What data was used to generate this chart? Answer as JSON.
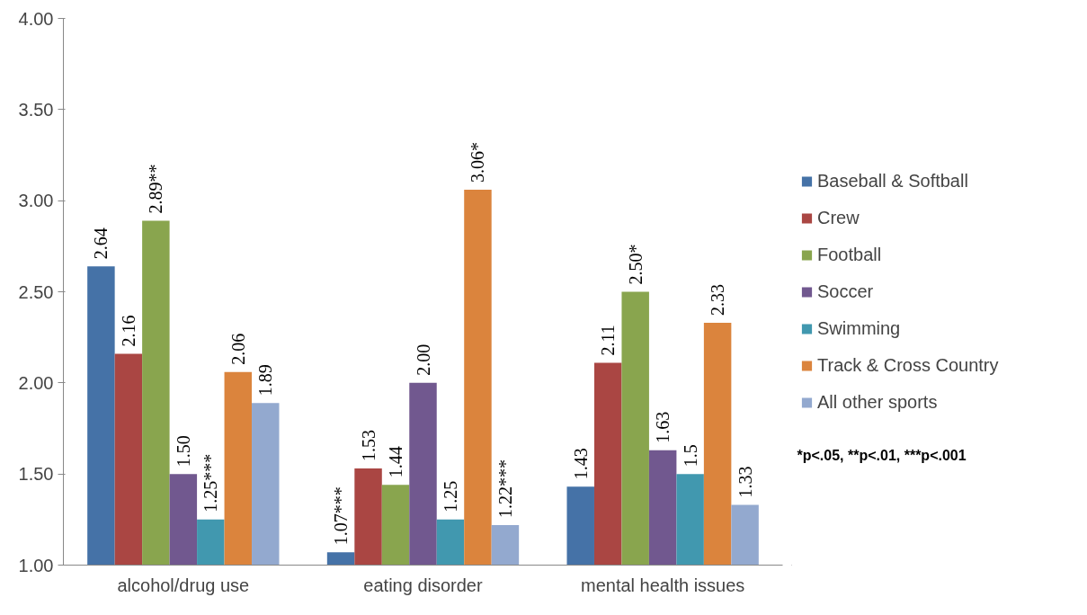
{
  "chart_data": {
    "type": "bar",
    "categories": [
      "alcohol/drug use",
      "eating disorder",
      "mental health issues"
    ],
    "series": [
      {
        "name": "Baseball & Softball",
        "color": "#4572a7",
        "values": [
          2.64,
          1.07,
          1.43
        ],
        "value_labels": [
          "2.64",
          "1.07***",
          "1.43"
        ]
      },
      {
        "name": "Crew",
        "color": "#aa4643",
        "values": [
          2.16,
          1.53,
          2.11
        ],
        "value_labels": [
          "2.16",
          "1.53",
          "2.11"
        ]
      },
      {
        "name": "Football",
        "color": "#89a54e",
        "values": [
          2.89,
          1.44,
          2.5
        ],
        "value_labels": [
          "2.89**",
          "1.44",
          "2.50*"
        ]
      },
      {
        "name": "Soccer",
        "color": "#71588f",
        "values": [
          1.5,
          2.0,
          1.63
        ],
        "value_labels": [
          "1.50",
          "2.00",
          "1.63"
        ]
      },
      {
        "name": "Swimming",
        "color": "#4198af",
        "values": [
          1.25,
          1.25,
          1.5
        ],
        "value_labels": [
          "1.25***",
          "1.25",
          "1.5"
        ]
      },
      {
        "name": "Track & Cross Country",
        "color": "#db843d",
        "values": [
          2.06,
          3.06,
          2.33
        ],
        "value_labels": [
          "2.06",
          "3.06*",
          "2.33"
        ]
      },
      {
        "name": "All other sports",
        "color": "#93a9cf",
        "values": [
          1.89,
          1.22,
          1.33
        ],
        "value_labels": [
          "1.89",
          "1.22***",
          "1.33"
        ]
      }
    ],
    "ylim": [
      1,
      4
    ],
    "yticks": [
      {
        "value": 1,
        "label": "1.00"
      },
      {
        "value": 1.5,
        "label": "1.50"
      },
      {
        "value": 2,
        "label": "2.00"
      },
      {
        "value": 2.5,
        "label": "2.50"
      },
      {
        "value": 3,
        "label": "3.00"
      },
      {
        "value": 3.5,
        "label": "3.50"
      },
      {
        "value": 4,
        "label": "4.00"
      }
    ],
    "grid": false,
    "legend": "right",
    "annotations": [
      "*p<.05, **p<.01, ***p<.001"
    ]
  }
}
